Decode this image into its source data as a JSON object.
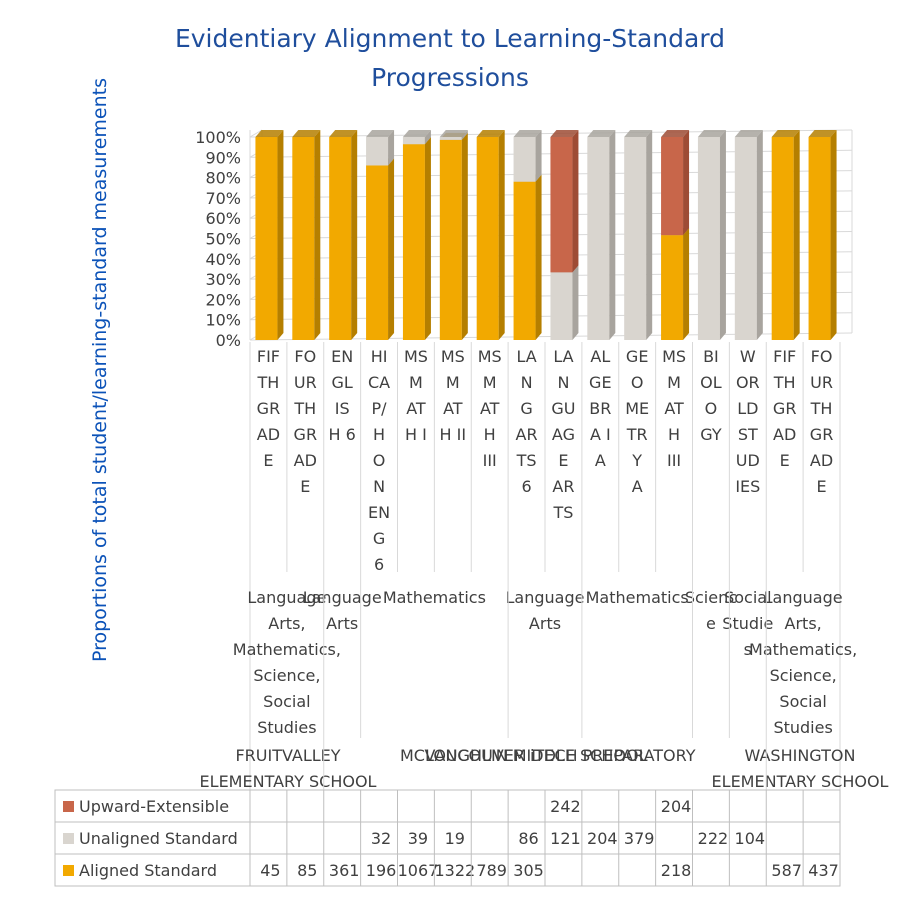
{
  "chart_data": {
    "type": "bar",
    "stacked": "percent",
    "title": "Evidentiary Alignment to Learning-Standard Progressions",
    "ylabel": "Proportions of total student/learning-standard measurements",
    "xlabel": "",
    "ylim": [
      0,
      1
    ],
    "yticks": [
      "0%",
      "10%",
      "20%",
      "30%",
      "40%",
      "50%",
      "60%",
      "70%",
      "80%",
      "90%",
      "100%"
    ],
    "grid": true,
    "legend_position": "table-bottom",
    "categories": [
      "FIFTH GRADE",
      "FOURTH GRADE",
      "ENGLISH 6",
      "HICAP/HONENG6",
      "MSMATH I",
      "MSMATH II",
      "MSMATH III",
      "LANGARTS6",
      "LANGUAGE ARTS",
      "ALGEBRA I A",
      "GEOMETRY A",
      "MSMATH III",
      "BIOLOGY",
      "WORLD STUDIES",
      "FIFTH GRADE",
      "FOURTH GRADE"
    ],
    "category_wrapped_labels": [
      [
        "FIF",
        "TH",
        "GR",
        "AD",
        "E"
      ],
      [
        "FO",
        "UR",
        "TH",
        "GR",
        "AD",
        "E"
      ],
      [
        "EN",
        "GL",
        "IS",
        "H 6"
      ],
      [
        "HI",
        "CA",
        "P/",
        "H",
        "O",
        "N",
        "EN",
        "G",
        "6"
      ],
      [
        "MS",
        "M",
        "AT",
        "H I"
      ],
      [
        "MS",
        "M",
        "AT",
        "H II"
      ],
      [
        "MS",
        "M",
        "AT",
        "H",
        "III"
      ],
      [
        "LA",
        "N",
        "G",
        "AR",
        "TS",
        "6"
      ],
      [
        "LA",
        "N",
        "GU",
        "AG",
        "E",
        "AR",
        "TS"
      ],
      [
        "AL",
        "GE",
        "BR",
        "A I",
        "A"
      ],
      [
        "GE",
        "O",
        "ME",
        "TR",
        "Y",
        "A"
      ],
      [
        "MS",
        "M",
        "AT",
        "H",
        "III"
      ],
      [
        "BI",
        "OL",
        "O",
        "GY"
      ],
      [
        "W",
        "OR",
        "LD",
        "ST",
        "UD",
        "IES"
      ],
      [
        "FIF",
        "TH",
        "GR",
        "AD",
        "E"
      ],
      [
        "FO",
        "UR",
        "TH",
        "GR",
        "AD",
        "E"
      ]
    ],
    "subjects": [
      {
        "lines": [
          "Language",
          "Arts,",
          "Mathematics,",
          "Science,",
          "Social",
          "Studies"
        ]
      },
      {
        "lines": [
          "Language",
          "Arts"
        ]
      },
      {
        "lines": [
          "Mathematics"
        ]
      },
      {
        "lines": [
          "Language",
          "Arts"
        ]
      },
      {
        "lines": [
          "Mathematics"
        ]
      },
      {
        "lines": [
          "Scienc",
          "e"
        ]
      },
      {
        "lines": [
          "Social",
          "Studie",
          "s"
        ]
      },
      {
        "lines": [
          "Language",
          "Arts,",
          "Mathematics,",
          "Science,",
          "Social",
          "Studies"
        ]
      }
    ],
    "schools": [
      {
        "lines": [
          "FRUITVALLEY",
          "ELEMENTARY SCHOOL"
        ]
      },
      {
        "lines": [
          "MCLOUGHLIN MIDDLE SCHOOL"
        ]
      },
      {
        "lines": [
          "VANCOUVER iTECH PREPARATORY"
        ]
      },
      {
        "lines": [
          "WASHINGTON",
          "ELEMENTARY SCHOOL"
        ]
      }
    ],
    "series": [
      {
        "name": "Upward-Extensible",
        "color": "#c8664a",
        "side_color": "#9e4c35",
        "values": [
          null,
          null,
          null,
          null,
          null,
          null,
          null,
          null,
          242,
          null,
          null,
          204,
          null,
          null,
          null,
          null
        ]
      },
      {
        "name": "Unaligned Standard",
        "color": "#d9d5cf",
        "side_color": "#a8a49e",
        "values": [
          null,
          null,
          null,
          32,
          39,
          19,
          null,
          86,
          121,
          204,
          379,
          null,
          222,
          104,
          null,
          null
        ]
      },
      {
        "name": "Aligned Standard",
        "color": "#f2a900",
        "side_color": "#b57f00",
        "values": [
          45,
          85,
          361,
          196,
          1067,
          1322,
          789,
          305,
          null,
          null,
          null,
          218,
          null,
          null,
          587,
          437
        ]
      }
    ]
  }
}
